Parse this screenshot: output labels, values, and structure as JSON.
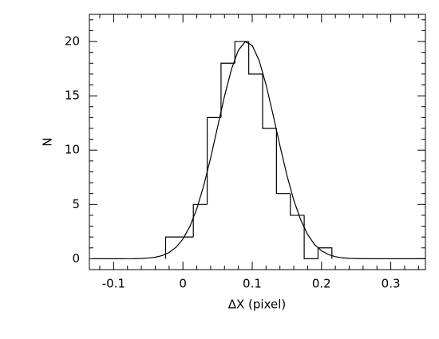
{
  "chart_data": {
    "type": "histogram",
    "xlabel": "ΔX (pixel)",
    "ylabel": "N",
    "bins": [
      -0.025,
      -0.005,
      0.015,
      0.035,
      0.055,
      0.075,
      0.095,
      0.115,
      0.135,
      0.155,
      0.175,
      0.195,
      0.215
    ],
    "values": [
      2,
      2,
      5,
      13,
      18,
      20,
      17,
      12,
      6,
      4,
      0,
      1
    ],
    "color": "#000000",
    "fit": {
      "x": [
        -0.13,
        -0.12,
        -0.11,
        -0.1,
        -0.09,
        -0.08,
        -0.07,
        -0.06,
        -0.05,
        -0.04,
        -0.03,
        -0.02,
        -0.01,
        0,
        0.01,
        0.02,
        0.03,
        0.04,
        0.05,
        0.06,
        0.07,
        0.08,
        0.09,
        0.1,
        0.11,
        0.12,
        0.13,
        0.14,
        0.15,
        0.16,
        0.17,
        0.18,
        0.19,
        0.2,
        0.21,
        0.22,
        0.23,
        0.24,
        0.25,
        0.26,
        0.27,
        0.28,
        0.29,
        0.3,
        0.31,
        0.32,
        0.33,
        0.34,
        0.35
      ],
      "values": [
        0,
        0,
        0,
        0,
        0,
        0.005,
        0.01,
        0.03,
        0.07,
        0.14,
        0.29,
        0.57,
        1.05,
        1.82,
        2.97,
        4.6,
        6.73,
        9.29,
        12.13,
        14.96,
        17.44,
        19.2,
        19.98,
        19.64,
        18.25,
        16.01,
        13.28,
        10.41,
        7.71,
        5.39,
        3.57,
        2.23,
        1.31,
        0.73,
        0.39,
        0.19,
        0.09,
        0.04,
        0.02,
        0.01,
        0,
        0,
        0,
        0,
        0,
        0,
        0,
        0,
        0
      ],
      "color": "#000000"
    },
    "xlim": [
      -0.135,
      0.35
    ],
    "ylim": [
      -1,
      22.5
    ],
    "xticks": [
      -0.1,
      0,
      0.1,
      0.2,
      0.3
    ],
    "yticks": [
      0,
      5,
      10,
      15,
      20
    ],
    "xminorticks": [
      -0.12,
      -0.08,
      -0.06,
      -0.04,
      -0.02,
      0.02,
      0.04,
      0.06,
      0.08,
      0.12,
      0.14,
      0.16,
      0.18,
      0.22,
      0.24,
      0.26,
      0.28,
      0.32,
      0.34
    ],
    "yminorticks": [
      -1,
      1,
      2,
      3,
      4,
      6,
      7,
      8,
      9,
      11,
      12,
      13,
      14,
      16,
      17,
      18,
      19,
      21,
      22
    ]
  }
}
